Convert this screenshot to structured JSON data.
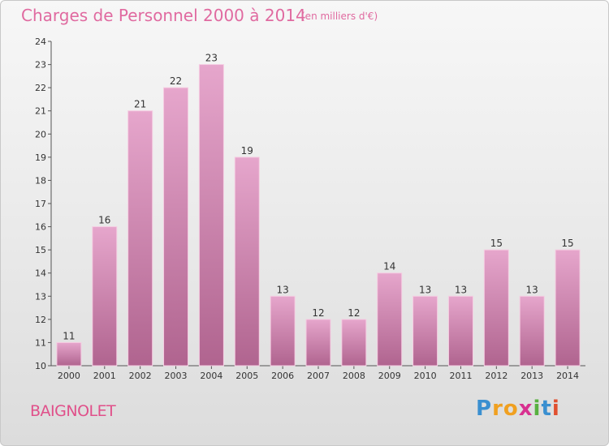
{
  "chart_data": {
    "type": "bar",
    "title": "Charges de Personnel 2000 à 2014",
    "subtitle": "(en milliers d'€)",
    "categories": [
      "2000",
      "2001",
      "2002",
      "2003",
      "2004",
      "2005",
      "2006",
      "2007",
      "2008",
      "2009",
      "2010",
      "2011",
      "2012",
      "2013",
      "2014"
    ],
    "values": [
      11,
      16,
      21,
      22,
      23,
      19,
      13,
      12,
      12,
      14,
      13,
      13,
      15,
      13,
      15
    ],
    "ylim": [
      10,
      24
    ],
    "yticks": [
      10,
      11,
      12,
      13,
      14,
      15,
      16,
      17,
      18,
      19,
      20,
      21,
      22,
      23,
      24
    ],
    "grid": false,
    "xlabel": "",
    "ylabel": ""
  },
  "footer": {
    "city": "BAIGNOLET",
    "logo_letters": [
      "P",
      "r",
      "o",
      "x",
      "i",
      "t",
      "i"
    ]
  },
  "colors": {
    "bar_top": "#e6a6cc",
    "bar_bottom": "#b0648f",
    "title": "#e06aa0",
    "logo": [
      "#3a8fd0",
      "#f0a020",
      "#f0a020",
      "#d83090",
      "#58b040",
      "#3a8fd0",
      "#e05030"
    ]
  }
}
